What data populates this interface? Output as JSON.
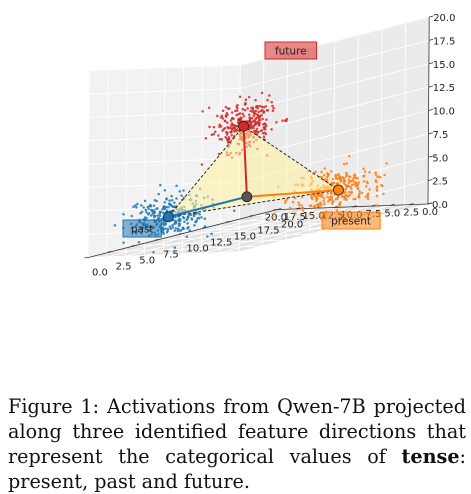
{
  "caption": {
    "label": "Figure 1:",
    "text_before": "Activations from Qwen-7B projected along three identified feature directions that represent the categorical values of",
    "bold_word": "tense",
    "text_after": ": present, past and future."
  },
  "chart_data": {
    "type": "scatter",
    "projection": "3d",
    "title": "",
    "xlabel": "",
    "ylabel": "",
    "zlabel": "",
    "xlim": [
      0,
      20
    ],
    "ylim": [
      0,
      20
    ],
    "zlim": [
      0,
      20
    ],
    "x_ticks": [
      "0.0",
      "2.5",
      "5.0",
      "7.5",
      "10.0",
      "12.5",
      "15.0",
      "17.5",
      "20.0"
    ],
    "y_ticks": [
      "0.0",
      "2.5",
      "5.0",
      "7.5",
      "10.0",
      "12.5",
      "15.0",
      "17.5",
      "20.0"
    ],
    "z_ticks": [
      "0.0",
      "2.5",
      "5.0",
      "7.5",
      "10.0",
      "12.5",
      "15.0",
      "17.5",
      "20.0"
    ],
    "grid": true,
    "series": [
      {
        "name": "past",
        "color": "#1f77b4",
        "center": [
          12.5,
          2.5,
          3.5
        ],
        "spread": [
          3.5,
          3.0,
          2.0
        ],
        "n": 300
      },
      {
        "name": "present",
        "color": "#ff7f0e",
        "center": [
          2.5,
          12.5,
          3.5
        ],
        "spread": [
          3.0,
          3.5,
          2.0
        ],
        "n": 300
      },
      {
        "name": "future",
        "color": "#d62728",
        "center": [
          2.0,
          2.0,
          13.0
        ],
        "spread": [
          2.5,
          2.5,
          2.2
        ],
        "n": 300
      }
    ],
    "origin_point": [
      4.0,
      4.0,
      5.0
    ],
    "simplex": [
      [
        12.5,
        2.5,
        3.5
      ],
      [
        2.5,
        12.5,
        3.5
      ],
      [
        2.0,
        2.0,
        13.0
      ]
    ]
  }
}
